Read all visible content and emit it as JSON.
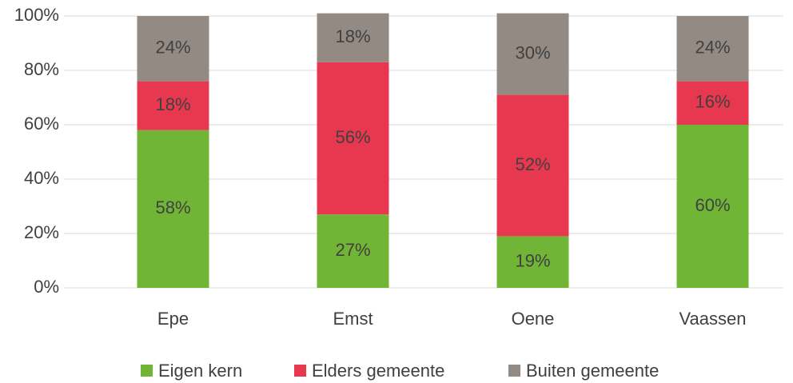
{
  "chart_data": {
    "type": "stacked_bar",
    "categories": [
      "Epe",
      "Emst",
      "Oene",
      "Vaassen"
    ],
    "series": [
      {
        "name": "Eigen kern",
        "color": "#70b536",
        "values": [
          58,
          27,
          19,
          60
        ],
        "value_labels": [
          "58%",
          "27%",
          "19%",
          "60%"
        ]
      },
      {
        "name": "Elders gemeente",
        "color": "#e8384f",
        "values": [
          18,
          56,
          52,
          16
        ],
        "value_labels": [
          "18%",
          "56%",
          "52%",
          "16%"
        ]
      },
      {
        "name": "Buiten gemeente",
        "color": "#938a83",
        "values": [
          24,
          18,
          30,
          24
        ],
        "value_labels": [
          "24%",
          "18%",
          "30%",
          "24%"
        ]
      }
    ],
    "ylim": [
      0,
      100
    ],
    "yticks": [
      {
        "value": 0,
        "label": "0%"
      },
      {
        "value": 20,
        "label": "20%"
      },
      {
        "value": 40,
        "label": "40%"
      },
      {
        "value": 60,
        "label": "60%"
      },
      {
        "value": 80,
        "label": "80%"
      },
      {
        "value": 100,
        "label": "100%"
      }
    ],
    "grid": true,
    "legend": "bottom"
  }
}
